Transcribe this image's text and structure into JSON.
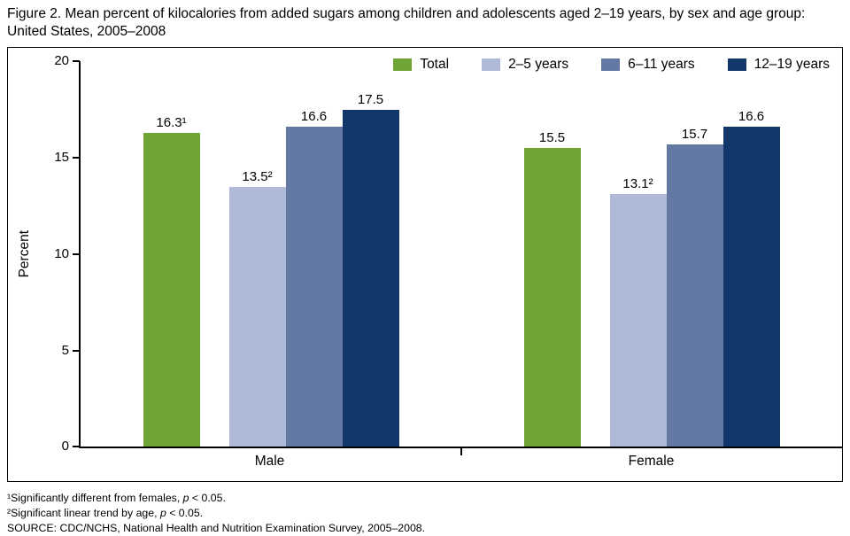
{
  "figure_title": "Figure 2. Mean percent of kilocalories from added sugars among children and adolescents aged 2–19 years, by sex and age group: United States, 2005–2008",
  "chart_data": {
    "type": "bar",
    "title": "Mean percent of kilocalories from added sugars among children and adolescents aged 2–19 years, by sex and age group: United States, 2005–2008",
    "xlabel": "",
    "ylabel": "Percent",
    "ylim": [
      0,
      20
    ],
    "yticks": [
      0,
      5,
      10,
      15,
      20
    ],
    "grid": false,
    "legend_position": "top-right-inside",
    "categories": [
      "Male",
      "Female"
    ],
    "series": [
      {
        "name": "Total",
        "color": "#6FA437",
        "values": [
          16.3,
          15.5
        ],
        "labels": [
          "16.3¹",
          "15.5"
        ]
      },
      {
        "name": "2–5 years",
        "color": "#AEBAD8",
        "values": [
          13.5,
          13.1
        ],
        "labels": [
          "13.5²",
          "13.1²"
        ]
      },
      {
        "name": "6–11 years",
        "color": "#6478A4",
        "values": [
          16.6,
          15.7
        ],
        "labels": [
          "16.6",
          "15.7"
        ]
      },
      {
        "name": "12–19 years",
        "color": "#12386B",
        "values": [
          17.5,
          16.6
        ],
        "labels": [
          "17.5",
          "16.6"
        ]
      }
    ]
  },
  "footnotes": [
    {
      "segments": [
        {
          "text": "¹Significantly different from females, "
        },
        {
          "text": "p",
          "italic": true
        },
        {
          "text": " < 0.05."
        }
      ]
    },
    {
      "segments": [
        {
          "text": "²Significant linear trend by age, "
        },
        {
          "text": "p",
          "italic": true
        },
        {
          "text": " < 0.05."
        }
      ]
    },
    {
      "segments": [
        {
          "text": "SOURCE: CDC/NCHS, National Health and Nutrition Examination Survey, 2005–2008."
        }
      ]
    }
  ]
}
